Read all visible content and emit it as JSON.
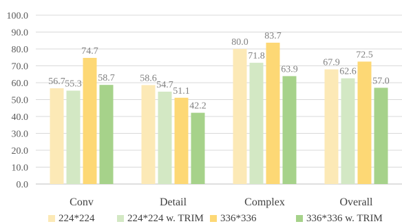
{
  "chart_data": {
    "type": "bar",
    "categories": [
      "Conv",
      "Detail",
      "Complex",
      "Overall"
    ],
    "series": [
      {
        "name": "224*224",
        "values": [
          56.7,
          58.6,
          80.0,
          67.9
        ],
        "color": "#fce9b6"
      },
      {
        "name": "224*224 w. TRIM",
        "values": [
          55.3,
          54.7,
          71.8,
          62.6
        ],
        "color": "#d3e8c4"
      },
      {
        "name": "336*336",
        "values": [
          74.7,
          51.1,
          83.7,
          72.5
        ],
        "color": "#fdd875"
      },
      {
        "name": "336*336 w. TRIM",
        "values": [
          58.7,
          42.2,
          63.9,
          57.0
        ],
        "color": "#a6d28a"
      }
    ],
    "ylim": [
      0,
      100
    ],
    "yticks": [
      "0.0",
      "10.0",
      "20.0",
      "30.0",
      "40.0",
      "50.0",
      "60.0",
      "70.0",
      "80.0",
      "90.0",
      "100.0"
    ],
    "grid": true,
    "legend_position": "bottom"
  }
}
